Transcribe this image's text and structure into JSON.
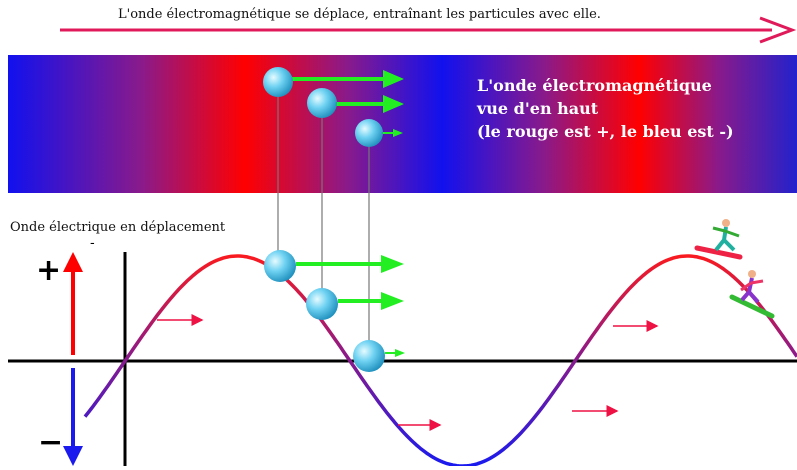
{
  "header": {
    "caption": "L'onde électromagnétique se déplace, entraînant les particules avec elle."
  },
  "top_view": {
    "lines": [
      "L'onde électromagnétique",
      "vue d'en haut",
      "(le rouge est +, le bleu est -)"
    ]
  },
  "wave": {
    "label": "Onde électrique en déplacement",
    "plus_sign": "+",
    "minus_sign": "−",
    "small_mark": "-"
  },
  "colors": {
    "positive": "#ff0000",
    "negative": "#0000ff",
    "particle": "#5ec8ee",
    "velocity_arrow": "#22ee22",
    "direction_arrow": "#ee1144",
    "wave_line": "#8a1a8a"
  }
}
